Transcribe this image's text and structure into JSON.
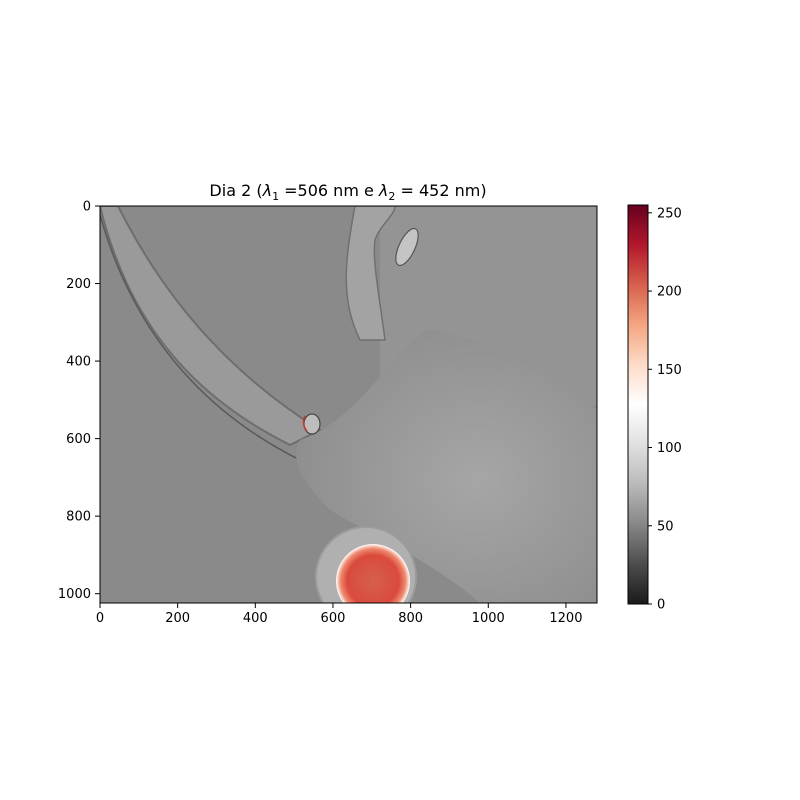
{
  "chart_data": {
    "type": "heatmap",
    "title": {
      "prefix": "Dia 2 (",
      "lambda1_label": "λ",
      "lambda1_sub": "1",
      "lambda1_value": " =506 nm e ",
      "lambda2_label": "λ",
      "lambda2_sub": "2",
      "lambda2_value": " = 452 nm)"
    },
    "xlabel": "",
    "ylabel": "",
    "xlim": [
      0,
      1280
    ],
    "ylim": [
      1024,
      0
    ],
    "x_ticks": [
      0,
      200,
      400,
      600,
      800,
      1000,
      1200
    ],
    "y_ticks": [
      0,
      200,
      400,
      600,
      800,
      1000
    ],
    "image": {
      "background_level": 75,
      "features": [
        {
          "name": "tail-outline",
          "kind": "curve",
          "level": 95
        },
        {
          "name": "body-region",
          "kind": "blob",
          "level": 80
        },
        {
          "name": "upper-leg",
          "kind": "curve",
          "level": 100
        },
        {
          "name": "ear-spot",
          "kind": "spot",
          "center": [
            790,
            100
          ],
          "level": 150
        },
        {
          "name": "eye-spot",
          "center": [
            545,
            560
          ],
          "kind": "spot",
          "level": 200
        },
        {
          "name": "hot-region",
          "kind": "disk",
          "center": [
            695,
            1000
          ],
          "radius_data": 85,
          "level": 215
        }
      ]
    },
    "colorbar": {
      "colormap": "RdGy_r",
      "range": [
        0,
        255
      ],
      "ticks": [
        0,
        50,
        100,
        150,
        200,
        250
      ],
      "stops": [
        "#1a1a1a",
        "#4d4d4d",
        "#878787",
        "#bababa",
        "#e0e0e0",
        "#ffffff",
        "#fddbc7",
        "#f4a582",
        "#d6604d",
        "#b2182b",
        "#67001f"
      ]
    },
    "grid": false
  }
}
